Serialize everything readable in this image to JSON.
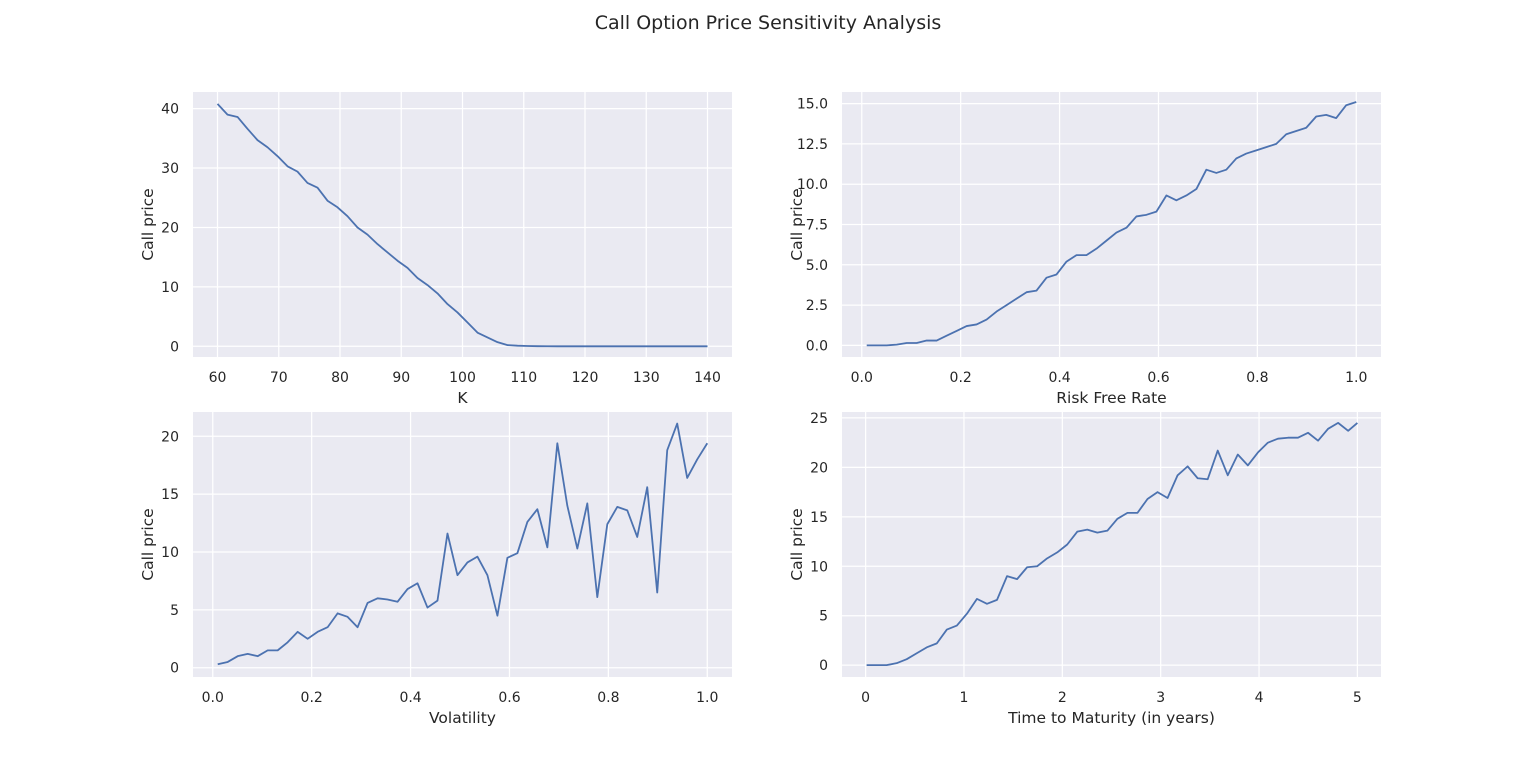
{
  "figure": {
    "title": "Call Option Price Sensitivity Analysis"
  },
  "colors": {
    "background": "#ffffff",
    "plot_bg": "#eaeaf2",
    "grid": "#ffffff",
    "line": "#4c72b0",
    "text": "#262626"
  },
  "chart_data": [
    {
      "type": "line",
      "title": "",
      "xlabel": "K",
      "ylabel": "Call price",
      "xlim": [
        56,
        144
      ],
      "ylim": [
        -1.8,
        42.8
      ],
      "xticks": [
        60,
        70,
        80,
        90,
        100,
        110,
        120,
        130,
        140
      ],
      "xtick_labels": [
        "60",
        "70",
        "80",
        "90",
        "100",
        "110",
        "120",
        "130",
        "140"
      ],
      "yticks": [
        0,
        10,
        20,
        30,
        40
      ],
      "ytick_labels": [
        "0",
        "10",
        "20",
        "30",
        "40"
      ],
      "x": [
        60,
        61.63,
        63.27,
        64.9,
        66.53,
        68.16,
        69.8,
        71.43,
        73.06,
        74.69,
        76.33,
        77.96,
        79.59,
        81.22,
        82.86,
        84.49,
        86.12,
        87.76,
        89.39,
        91.02,
        92.65,
        94.29,
        95.92,
        97.55,
        99.18,
        100.82,
        102.45,
        104.08,
        105.71,
        107.35,
        108.98,
        110.61,
        112.24,
        113.88,
        115.51,
        117.14,
        118.78,
        120.41,
        122.04,
        123.67,
        125.31,
        126.94,
        128.57,
        130.2,
        131.84,
        133.47,
        135.1,
        136.73,
        138.37,
        140
      ],
      "y": [
        40.8,
        39,
        38.6,
        36.6,
        34.7,
        33.5,
        32,
        30.3,
        29.4,
        27.5,
        26.7,
        24.5,
        23.4,
        21.9,
        20,
        18.8,
        17.2,
        15.8,
        14.4,
        13.2,
        11.5,
        10.3,
        8.9,
        7.1,
        5.7,
        4,
        2.3,
        1.5,
        0.7,
        0.2,
        0.1,
        0.05,
        0.02,
        0.01,
        0,
        0,
        0,
        0,
        0,
        0,
        0,
        0,
        0,
        0,
        0,
        0,
        0,
        0,
        0,
        0
      ],
      "series": [
        {
          "name": "Call price",
          "color": "#4c72b0"
        }
      ]
    },
    {
      "type": "line",
      "title": "",
      "xlabel": "Risk Free Rate",
      "ylabel": "Call price",
      "xlim": [
        -0.04,
        1.05
      ],
      "ylim": [
        -0.72,
        15.72
      ],
      "xticks": [
        0,
        0.2,
        0.4,
        0.6,
        0.8,
        1.0
      ],
      "xtick_labels": [
        "0.0",
        "0.2",
        "0.4",
        "0.6",
        "0.8",
        "1.0"
      ],
      "yticks": [
        0,
        2.5,
        5,
        7.5,
        10,
        12.5,
        15
      ],
      "ytick_labels": [
        "0.0",
        "2.5",
        "5.0",
        "7.5",
        "10.0",
        "12.5",
        "15.0"
      ],
      "x": [
        0.01,
        0.0302,
        0.0504,
        0.0706,
        0.0908,
        0.111,
        0.1312,
        0.1514,
        0.1716,
        0.1918,
        0.212,
        0.2322,
        0.2524,
        0.2726,
        0.2928,
        0.313,
        0.3332,
        0.3534,
        0.3736,
        0.3938,
        0.414,
        0.4342,
        0.4544,
        0.4746,
        0.4948,
        0.515,
        0.5352,
        0.5554,
        0.5756,
        0.5958,
        0.616,
        0.6362,
        0.6564,
        0.6766,
        0.6968,
        0.717,
        0.7372,
        0.7574,
        0.7776,
        0.7978,
        0.818,
        0.8382,
        0.8584,
        0.8786,
        0.8988,
        0.919,
        0.9392,
        0.9594,
        0.9796,
        1.0
      ],
      "y": [
        0,
        0,
        0,
        0.05,
        0.15,
        0.15,
        0.3,
        0.3,
        0.6,
        0.9,
        1.2,
        1.3,
        1.6,
        2.1,
        2.5,
        2.9,
        3.3,
        3.4,
        4.2,
        4.4,
        5.2,
        5.6,
        5.6,
        6,
        6.5,
        7,
        7.3,
        8,
        8.1,
        8.3,
        9.3,
        9,
        9.3,
        9.7,
        10.9,
        10.7,
        10.9,
        11.6,
        11.9,
        12.1,
        12.3,
        12.5,
        13.1,
        13.3,
        13.5,
        14.2,
        14.3,
        14.1,
        14.9,
        15.1
      ],
      "series": [
        {
          "name": "Call price",
          "color": "#4c72b0"
        }
      ]
    },
    {
      "type": "line",
      "title": "",
      "xlabel": "Volatility",
      "ylabel": "Call price",
      "xlim": [
        -0.04,
        1.05
      ],
      "ylim": [
        -0.8,
        22.1
      ],
      "xticks": [
        0,
        0.2,
        0.4,
        0.6,
        0.8,
        1.0
      ],
      "xtick_labels": [
        "0.0",
        "0.2",
        "0.4",
        "0.6",
        "0.8",
        "1.0"
      ],
      "yticks": [
        0,
        5,
        10,
        15,
        20
      ],
      "ytick_labels": [
        "0",
        "5",
        "10",
        "15",
        "20"
      ],
      "x": [
        0.01,
        0.0302,
        0.0504,
        0.0706,
        0.0908,
        0.111,
        0.1312,
        0.1514,
        0.1716,
        0.1918,
        0.212,
        0.2322,
        0.2524,
        0.2726,
        0.2928,
        0.313,
        0.3332,
        0.3534,
        0.3736,
        0.3938,
        0.414,
        0.4342,
        0.4544,
        0.4746,
        0.4948,
        0.515,
        0.5352,
        0.5554,
        0.5756,
        0.5958,
        0.616,
        0.6362,
        0.6564,
        0.6766,
        0.6968,
        0.717,
        0.7372,
        0.7574,
        0.7776,
        0.7978,
        0.818,
        0.8382,
        0.8584,
        0.8786,
        0.8988,
        0.919,
        0.9392,
        0.9594,
        0.9796,
        1.0
      ],
      "y": [
        0.3,
        0.5,
        1,
        1.2,
        1,
        1.5,
        1.5,
        2.2,
        3.1,
        2.5,
        3.1,
        3.5,
        4.7,
        4.4,
        3.5,
        5.6,
        6,
        5.9,
        5.7,
        6.8,
        7.3,
        5.2,
        5.8,
        11.6,
        8,
        9.1,
        9.6,
        8,
        4.5,
        9.5,
        9.9,
        12.6,
        13.7,
        10.4,
        19.4,
        14,
        10.3,
        14.2,
        6.1,
        12.4,
        13.9,
        13.6,
        11.3,
        15.6,
        6.5,
        18.8,
        21.1,
        16.4,
        18,
        19.4
      ],
      "series": [
        {
          "name": "Call price",
          "color": "#4c72b0"
        }
      ]
    },
    {
      "type": "line",
      "title": "",
      "xlabel": "Time to Maturity (in years)",
      "ylabel": "Call price",
      "xlim": [
        -0.24,
        5.24
      ],
      "ylim": [
        -1.2,
        25.6
      ],
      "xticks": [
        0,
        1,
        2,
        3,
        4,
        5
      ],
      "xtick_labels": [
        "0",
        "1",
        "2",
        "3",
        "4",
        "5"
      ],
      "yticks": [
        0,
        5,
        10,
        15,
        20,
        25
      ],
      "ytick_labels": [
        "0",
        "5",
        "10",
        "15",
        "20",
        "25"
      ],
      "x": [
        0.01,
        0.112,
        0.214,
        0.316,
        0.418,
        0.52,
        0.622,
        0.724,
        0.826,
        0.928,
        1.03,
        1.132,
        1.234,
        1.336,
        1.438,
        1.54,
        1.642,
        1.744,
        1.846,
        1.948,
        2.05,
        2.152,
        2.254,
        2.356,
        2.458,
        2.56,
        2.662,
        2.764,
        2.866,
        2.968,
        3.07,
        3.172,
        3.274,
        3.376,
        3.478,
        3.58,
        3.682,
        3.784,
        3.886,
        3.988,
        4.09,
        4.192,
        4.294,
        4.396,
        4.498,
        4.6,
        4.702,
        4.804,
        4.906,
        5.0
      ],
      "y": [
        0,
        0,
        0,
        0.2,
        0.6,
        1.2,
        1.8,
        2.2,
        3.6,
        4,
        5.2,
        6.7,
        6.2,
        6.6,
        9,
        8.7,
        9.9,
        10,
        10.8,
        11.4,
        12.2,
        13.5,
        13.7,
        13.4,
        13.6,
        14.8,
        15.4,
        15.4,
        16.8,
        17.5,
        16.9,
        19.2,
        20.1,
        18.9,
        18.8,
        21.7,
        19.2,
        21.3,
        20.2,
        21.5,
        22.5,
        22.9,
        23,
        23,
        23.5,
        22.7,
        23.9,
        24.5,
        23.7,
        24.5
      ],
      "series": [
        {
          "name": "Call price",
          "color": "#4c72b0"
        }
      ]
    }
  ]
}
